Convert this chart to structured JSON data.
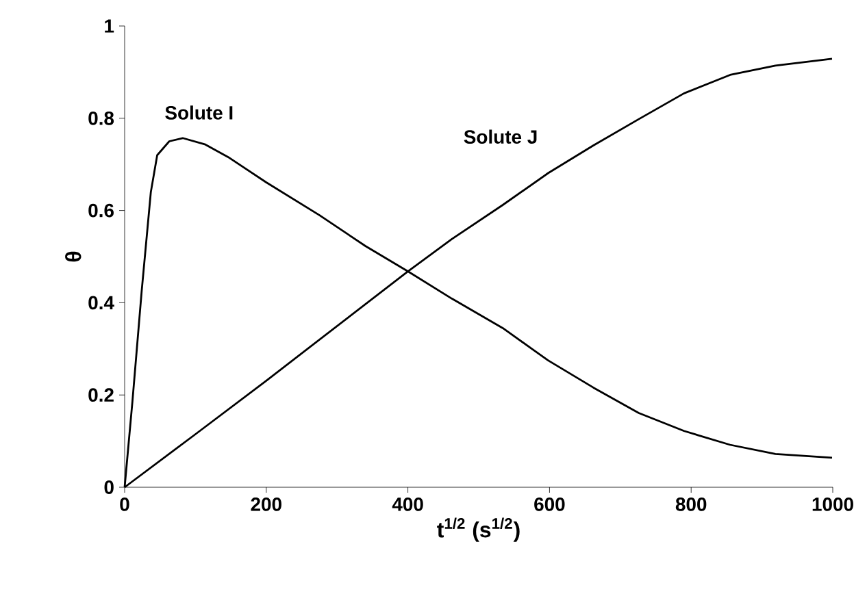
{
  "chart_data": {
    "type": "line",
    "xlabel": "t$^{1/2}$ (s$^{1/2}$)",
    "ylabel": "θ",
    "xlim": [
      0,
      1000
    ],
    "xticks": [
      0,
      200,
      400,
      600,
      800,
      1000
    ],
    "ylim": [
      0,
      1
    ],
    "yticks": [
      0,
      0.2,
      0.4,
      0.6,
      0.8,
      1
    ],
    "grid": false,
    "legend": false,
    "marker": "none",
    "line_style": "solid",
    "series": [
      {
        "name": "Solute I",
        "color": "#000000",
        "x": [
          0,
          11,
          24,
          37,
          46,
          63,
          82,
          114,
          146,
          200,
          275,
          340,
          400,
          462,
          534,
          598,
          662,
          726,
          790,
          855,
          919,
          999
        ],
        "values": [
          0,
          0.186,
          0.424,
          0.64,
          0.72,
          0.75,
          0.757,
          0.743,
          0.716,
          0.661,
          0.59,
          0.523,
          0.468,
          0.409,
          0.345,
          0.275,
          0.216,
          0.161,
          0.122,
          0.092,
          0.072,
          0.064
        ]
      },
      {
        "name": "Solute J",
        "color": "#000000",
        "x": [
          0,
          100,
          200,
          400,
          462,
          534,
          598,
          662,
          726,
          790,
          855,
          919,
          999
        ],
        "values": [
          0,
          0.115,
          0.231,
          0.468,
          0.538,
          0.612,
          0.681,
          0.741,
          0.798,
          0.854,
          0.894,
          0.914,
          0.929
        ]
      }
    ]
  }
}
